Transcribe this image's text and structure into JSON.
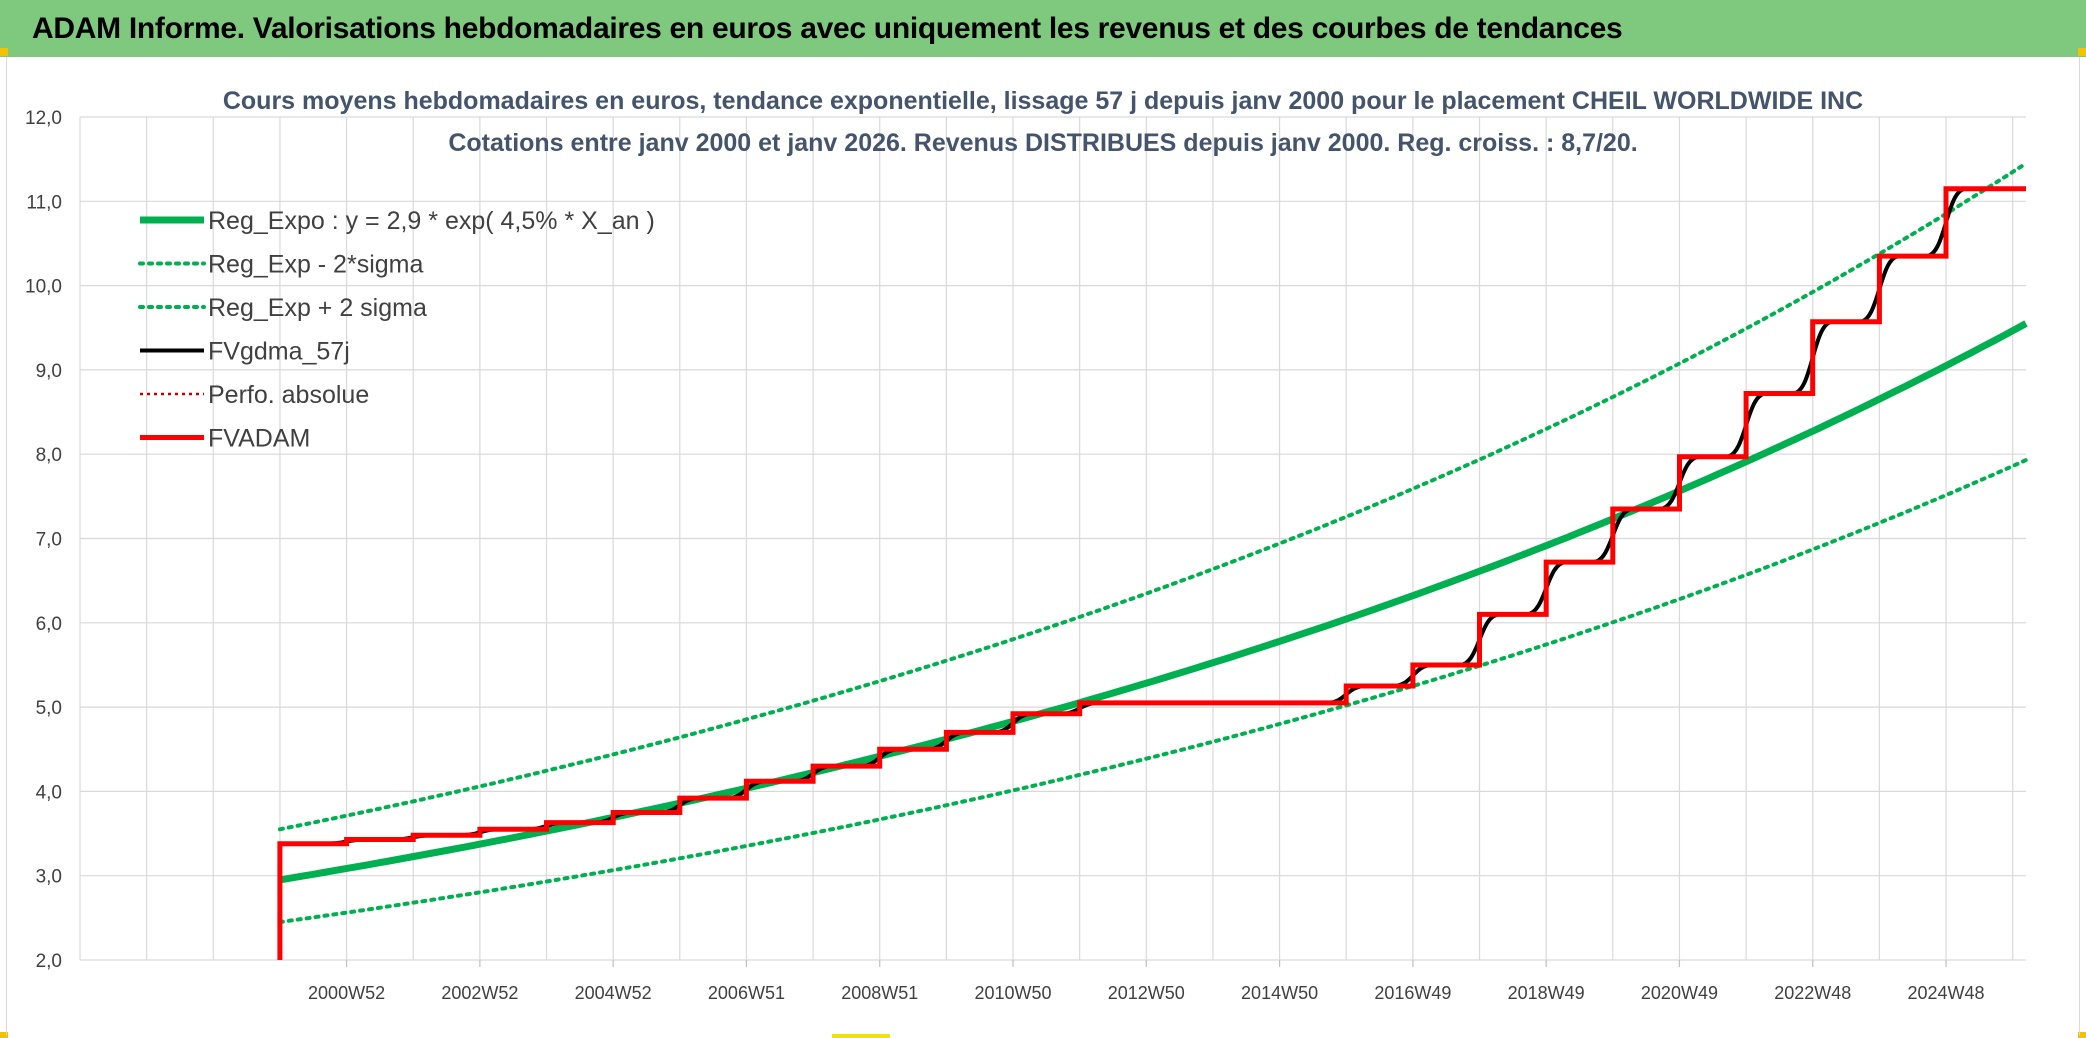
{
  "header": {
    "title": "ADAM Informe. Valorisations hebdomadaires en euros avec uniquement les revenus et des courbes de tendances"
  },
  "colors": {
    "banner": "#7fc97f",
    "reg_expo": "#00b050",
    "fvadam": "#ff0000",
    "fvgdma": "#000000",
    "perfo": "#c00000",
    "grid": "#d9d9d9"
  },
  "chart_data": {
    "type": "line",
    "title_line1": "Cours moyens hebdomadaires en euros, tendance exponentielle, lissage 57 j depuis janv 2000 pour le placement CHEIL WORLDWIDE INC",
    "title_line2": "Cotations entre janv 2000 et janv 2026. Revenus DISTRIBUES depuis janv 2000. Reg. croiss. : 8,7/20.",
    "ylim": [
      2,
      12
    ],
    "yticks": [
      "2,0",
      "3,0",
      "4,0",
      "5,0",
      "6,0",
      "7,0",
      "8,0",
      "9,0",
      "10,0",
      "11,0",
      "12,0"
    ],
    "xlim": [
      1997,
      2026.2
    ],
    "xticks": [
      {
        "label": "2000W52",
        "x": 2001.0
      },
      {
        "label": "2002W52",
        "x": 2003.0
      },
      {
        "label": "2004W52",
        "x": 2005.0
      },
      {
        "label": "2006W51",
        "x": 2007.0
      },
      {
        "label": "2008W51",
        "x": 2009.0
      },
      {
        "label": "2010W50",
        "x": 2011.0
      },
      {
        "label": "2012W50",
        "x": 2013.0
      },
      {
        "label": "2014W50",
        "x": 2015.0
      },
      {
        "label": "2016W49",
        "x": 2017.0
      },
      {
        "label": "2018W49",
        "x": 2019.0
      },
      {
        "label": "2020W49",
        "x": 2021.0
      },
      {
        "label": "2022W48",
        "x": 2023.0
      },
      {
        "label": "2024W48",
        "x": 2025.0
      }
    ],
    "legend": [
      {
        "key": "reg",
        "label": "Reg_Expo : y = 2,9 * exp( 4,5% *  X_an )",
        "style": "thick-solid"
      },
      {
        "key": "low",
        "label": "Reg_Exp - 2*sigma",
        "style": "dotted"
      },
      {
        "key": "high",
        "label": "Reg_Exp + 2 sigma",
        "style": "dotted"
      },
      {
        "key": "gdma",
        "label": "FVgdma_57j",
        "style": "solid"
      },
      {
        "key": "perfo",
        "label": "Perfo. absolue",
        "style": "dotted"
      },
      {
        "key": "fvadam",
        "label": "FVADAM",
        "style": "thick-solid"
      }
    ],
    "legend_position": "top-left",
    "grid": true,
    "series": [
      {
        "name": "Reg_Expo : y = 2,9 * exp( 4,5% *  X_an )",
        "type": "exponential",
        "x_start": 2000.0,
        "x_end": 2026.2,
        "y_start": 2.95,
        "y_end": 9.55
      },
      {
        "name": "Reg_Exp - 2*sigma",
        "type": "exponential",
        "x_start": 2000.0,
        "x_end": 2026.2,
        "y_start": 2.45,
        "y_end": 7.93
      },
      {
        "name": "Reg_Exp + 2 sigma",
        "type": "exponential",
        "x_start": 2000.0,
        "x_end": 2026.2,
        "y_start": 3.55,
        "y_end": 11.45
      },
      {
        "name": "FVADAM",
        "type": "step",
        "start": [
          2000.0,
          2.0
        ],
        "steps": [
          [
            2000.0,
            3.38
          ],
          [
            2001.0,
            3.43
          ],
          [
            2002.0,
            3.48
          ],
          [
            2003.0,
            3.55
          ],
          [
            2004.0,
            3.63
          ],
          [
            2005.0,
            3.75
          ],
          [
            2006.0,
            3.92
          ],
          [
            2007.0,
            4.12
          ],
          [
            2008.0,
            4.3
          ],
          [
            2009.0,
            4.5
          ],
          [
            2010.0,
            4.7
          ],
          [
            2011.0,
            4.92
          ],
          [
            2012.0,
            5.05
          ],
          [
            2016.0,
            5.25
          ],
          [
            2017.0,
            5.5
          ],
          [
            2018.0,
            6.1
          ],
          [
            2019.0,
            6.72
          ],
          [
            2020.0,
            7.35
          ],
          [
            2021.0,
            7.97
          ],
          [
            2022.0,
            8.72
          ],
          [
            2023.0,
            9.57
          ],
          [
            2024.0,
            10.35
          ],
          [
            2025.0,
            11.15
          ]
        ],
        "x_end": 2026.2
      }
    ]
  }
}
